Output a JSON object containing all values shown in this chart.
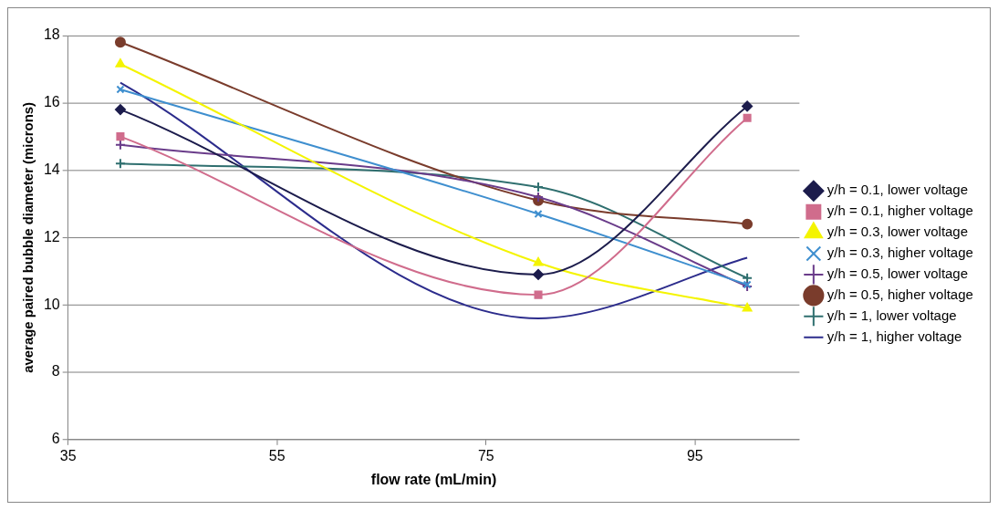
{
  "chart_data": {
    "type": "line",
    "xlabel": "flow rate (mL/min)",
    "ylabel": "average paired bubble diameter (microns)",
    "x": [
      40,
      80,
      100
    ],
    "xlim": [
      35,
      105
    ],
    "xticks": [
      35,
      55,
      75,
      95
    ],
    "ylim": [
      6,
      18
    ],
    "yticks": [
      6,
      8,
      10,
      12,
      14,
      16,
      18
    ],
    "grid": "y",
    "legend": "right",
    "series": [
      {
        "name": "y/h = 0.1, lower voltage",
        "color": "#1c1c4c",
        "marker": "diamond",
        "values": [
          15.8,
          10.9,
          15.9
        ]
      },
      {
        "name": "y/h = 0.1, higher voltage",
        "color": "#d06c8c",
        "marker": "square",
        "values": [
          15.0,
          10.3,
          15.55
        ]
      },
      {
        "name": "y/h = 0.3, lower voltage",
        "color": "#f4f400",
        "marker": "triangle",
        "values": [
          17.15,
          11.25,
          9.9
        ]
      },
      {
        "name": "y/h = 0.3, higher voltage",
        "color": "#3f8fcf",
        "marker": "x",
        "values": [
          16.4,
          12.7,
          10.6
        ]
      },
      {
        "name": "y/h = 0.5, lower voltage",
        "color": "#6a3c8a",
        "marker": "cross",
        "values": [
          14.75,
          13.2,
          10.55
        ]
      },
      {
        "name": "y/h = 0.5, higher voltage",
        "color": "#7a3c2c",
        "marker": "circle",
        "values": [
          17.8,
          13.1,
          12.4
        ]
      },
      {
        "name": "y/h = 1, lower voltage",
        "color": "#2f6f6f",
        "marker": "cross",
        "values": [
          14.2,
          13.5,
          10.8
        ]
      },
      {
        "name": "y/h = 1, higher voltage",
        "color": "#2c2c8c",
        "marker": "none",
        "values": [
          16.6,
          9.6,
          11.4
        ]
      }
    ]
  }
}
